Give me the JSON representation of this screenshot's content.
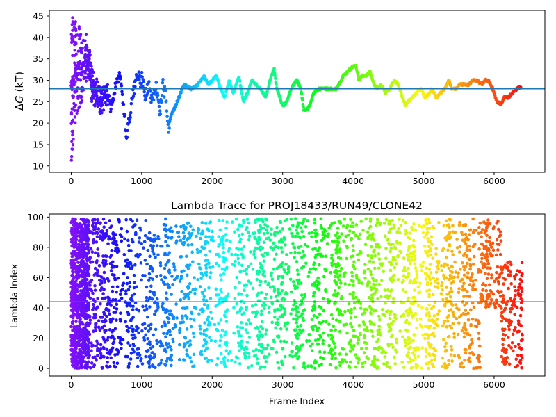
{
  "colors": {
    "reference_line": "#1f77b4",
    "colormap": "rainbow",
    "axes": "#000000",
    "background": "#ffffff"
  },
  "chart_data": [
    {
      "type": "scatter",
      "title": "",
      "xlabel": "",
      "ylabel_prefix": "Δ",
      "ylabel_var": "G",
      "ylabel_suffix": " (kT)",
      "xlim": [
        -310,
        6720
      ],
      "ylim": [
        8.5,
        46.3
      ],
      "xticks": [
        0,
        1000,
        2000,
        3000,
        4000,
        5000,
        6000
      ],
      "yticks": [
        10,
        15,
        20,
        25,
        30,
        35,
        40,
        45
      ],
      "grid": false,
      "reference_line_y": 28.0,
      "color_by": "x",
      "trace_x": [
        0,
        60,
        110,
        160,
        220,
        280,
        350,
        420,
        500,
        560,
        620,
        700,
        760,
        780,
        820,
        880,
        940,
        980,
        1000,
        1050,
        1100,
        1150,
        1200,
        1260,
        1300,
        1340,
        1380,
        1420,
        1480,
        1550,
        1600,
        1700,
        1800,
        1880,
        1950,
        2000,
        2060,
        2120,
        2180,
        2240,
        2300,
        2380,
        2440,
        2500,
        2560,
        2620,
        2680,
        2760,
        2840,
        2880,
        2920,
        2960,
        3000,
        3060,
        3120,
        3200,
        3260,
        3300,
        3340,
        3380,
        3440,
        3520,
        3600,
        3680,
        3760,
        3800,
        3860,
        3920,
        3980,
        4040,
        4080,
        4120,
        4180,
        4240,
        4300,
        4340,
        4400,
        4460,
        4520,
        4580,
        4640,
        4700,
        4740,
        4780,
        4840,
        4900,
        4960,
        5020,
        5080,
        5120,
        5180,
        5240,
        5300,
        5360,
        5400,
        5460,
        5520,
        5580,
        5640,
        5700,
        5760,
        5820,
        5880,
        5920,
        5980,
        6040,
        6100,
        6140,
        6200,
        6260,
        6320,
        6380
      ],
      "trace_y": [
        28,
        31,
        33,
        32,
        36,
        30,
        27,
        25,
        27,
        24,
        28,
        31,
        21,
        16.5,
        20,
        27,
        32,
        29,
        31,
        26,
        29,
        25,
        29,
        22,
        29,
        26,
        19,
        22,
        24,
        27,
        29,
        28,
        29,
        31,
        29,
        30,
        31,
        28,
        26,
        30,
        27,
        31,
        25,
        27,
        30,
        29,
        28,
        26,
        31,
        32.5,
        28,
        26,
        24,
        25,
        28,
        30,
        28,
        23,
        23,
        24,
        27,
        28,
        28,
        28,
        28,
        29,
        31,
        32,
        33,
        33.5,
        30,
        31,
        31,
        32,
        29,
        28,
        29,
        27,
        28,
        30,
        29,
        26,
        24,
        25,
        26,
        27,
        28,
        26,
        27,
        28,
        26,
        27,
        28,
        30,
        28,
        28,
        29,
        29,
        29,
        30,
        30,
        29,
        30,
        30,
        28,
        25,
        24.5,
        26,
        26,
        27,
        28,
        28.5
      ]
    },
    {
      "type": "scatter",
      "title": "Lambda Trace for PROJ18433/RUN49/CLONE42",
      "xlabel": "Frame Index",
      "ylabel": "Lambda Index",
      "xlim": [
        -310,
        6720
      ],
      "ylim": [
        -5,
        102
      ],
      "xticks": [
        0,
        1000,
        2000,
        3000,
        4000,
        5000,
        6000
      ],
      "yticks": [
        0,
        20,
        40,
        60,
        80,
        100
      ],
      "grid": false,
      "reference_line_y": 44.0,
      "color_by": "x",
      "y_range": [
        0,
        99
      ],
      "x_range": [
        0,
        6400
      ]
    }
  ]
}
